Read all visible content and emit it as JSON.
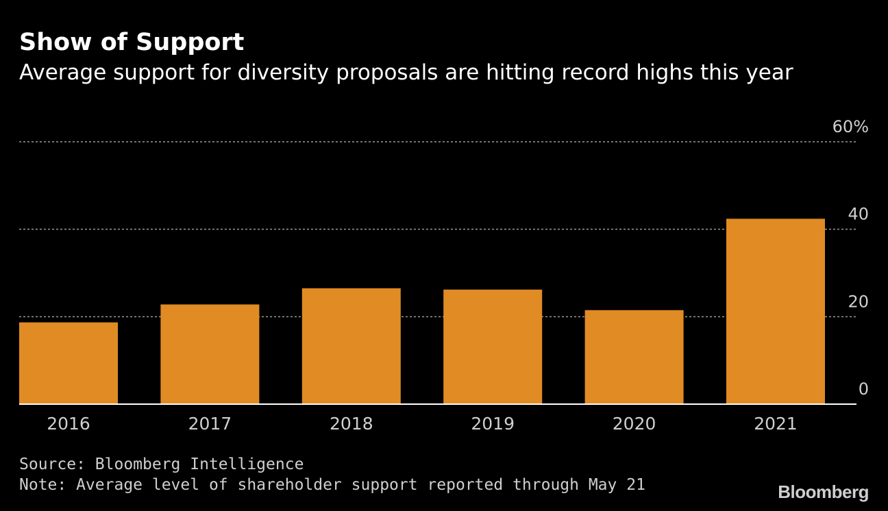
{
  "header": {
    "title": "Show of Support",
    "subtitle": "Average support for diversity proposals are hitting record highs this year"
  },
  "footer": {
    "source": "Source: Bloomberg Intelligence",
    "note": "Note: Average level of shareholder support reported through May 21",
    "brand": "Bloomberg"
  },
  "colors": {
    "bar": "#e08b24",
    "background": "#000000",
    "text": "#ffffff",
    "muted": "#cfcfcf",
    "grid": "#9a9a9a",
    "axis": "#ffffff"
  },
  "chart_data": {
    "type": "bar",
    "title": "Show of Support",
    "subtitle": "Average support for diversity proposals are hitting record highs this year",
    "categories": [
      "2016",
      "2017",
      "2018",
      "2019",
      "2020",
      "2021"
    ],
    "values": [
      18.7,
      22.8,
      26.5,
      26.2,
      21.5,
      42.4
    ],
    "ylim": [
      0,
      60
    ],
    "yticks": [
      0,
      20,
      40,
      60
    ],
    "ytick_labels": [
      "0",
      "20",
      "40",
      "60%"
    ],
    "xlabel": "",
    "ylabel": "",
    "grid": true,
    "y_axis_side": "right"
  }
}
